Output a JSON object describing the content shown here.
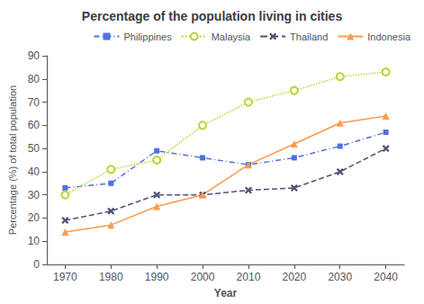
{
  "chart_data": {
    "type": "line",
    "title": "Percentage of the population living in cities",
    "xlabel": "Year",
    "ylabel": "Percentage (%) of total population",
    "x": [
      1970,
      1980,
      1990,
      2000,
      2010,
      2020,
      2030,
      2040
    ],
    "series": [
      {
        "name": "Philippines",
        "values": [
          33,
          35,
          49,
          46,
          43,
          46,
          51,
          57
        ],
        "marker": "square",
        "line_style": "dashdot"
      },
      {
        "name": "Malaysia",
        "values": [
          30,
          41,
          45,
          60,
          70,
          75,
          81,
          83
        ],
        "marker": "circle",
        "line_style": "dotted"
      },
      {
        "name": "Thailand",
        "values": [
          19,
          23,
          30,
          30,
          32,
          33,
          40,
          50
        ],
        "marker": "x",
        "line_style": "dashed"
      },
      {
        "name": "Indonesia",
        "values": [
          14,
          17,
          25,
          30,
          43,
          52,
          61,
          64
        ],
        "marker": "triangle",
        "line_style": "solid"
      }
    ],
    "xlim": [
      1966,
      2044
    ],
    "xticks": [
      1970,
      1980,
      1990,
      2000,
      2010,
      2020,
      2030,
      2040
    ],
    "ylim": [
      0,
      90
    ],
    "yticks": [
      0,
      10,
      20,
      30,
      40,
      50,
      60,
      70,
      80,
      90
    ],
    "grid": false,
    "legend": "upper right"
  }
}
